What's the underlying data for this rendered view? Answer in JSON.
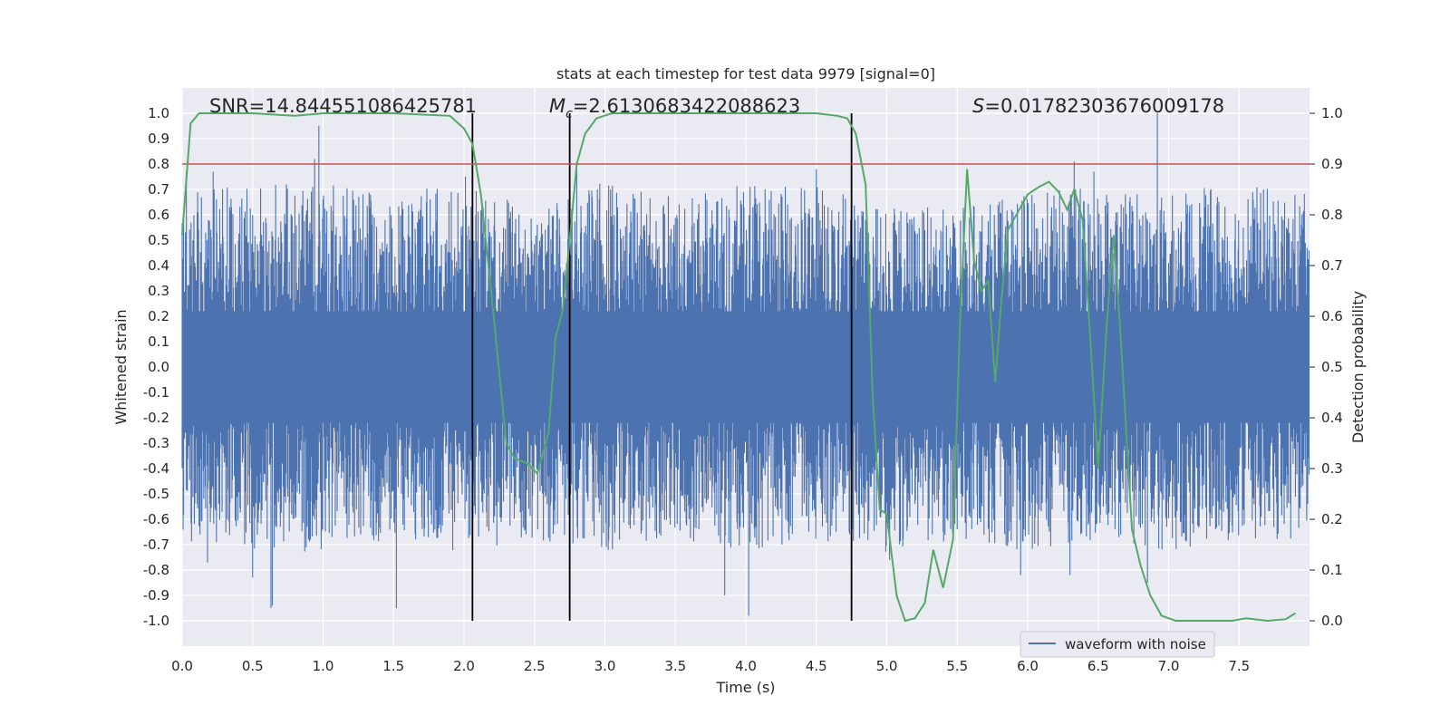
{
  "chart_data": {
    "type": "line",
    "title": "stats at each timestep for test data 9979 [signal=0]",
    "xlabel": "Time (s)",
    "ylabel_left": "Whitened strain",
    "ylabel_right": "Detection probability",
    "xlim": [
      0.0,
      8.0
    ],
    "ylim_left": [
      -1.1,
      1.1
    ],
    "ylim_right": [
      -0.05,
      1.05
    ],
    "xticks": [
      "0.0",
      "0.5",
      "1.0",
      "1.5",
      "2.0",
      "2.5",
      "3.0",
      "3.5",
      "4.0",
      "4.5",
      "5.0",
      "5.5",
      "6.0",
      "6.5",
      "7.0",
      "7.5"
    ],
    "yticks_left": [
      "1.0",
      "0.9",
      "0.8",
      "0.7",
      "0.6",
      "0.5",
      "0.4",
      "0.3",
      "0.2",
      "0.1",
      "0.0",
      "-0.1",
      "-0.2",
      "-0.3",
      "-0.4",
      "-0.5",
      "-0.6",
      "-0.7",
      "-0.8",
      "-0.9",
      "-1.0"
    ],
    "yticks_right": [
      "1.0",
      "0.9",
      "0.8",
      "0.7",
      "0.6",
      "0.5",
      "0.4",
      "0.3",
      "0.2",
      "0.1",
      "0.0"
    ],
    "grid": true,
    "legend_position": "lower-right",
    "threshold": {
      "axis": "right",
      "value": 0.9,
      "color": "#c44e52"
    },
    "vertical_lines": [
      2.06,
      2.75,
      4.75
    ],
    "annotations": {
      "snr": "SNR=14.844551086425781",
      "mc_symbol": "M",
      "mc_sub": "c",
      "mc_value": "=2.6130683422088623",
      "s_symbol": "S",
      "s_value": "=0.01782303676009178"
    },
    "series": [
      {
        "name": "waveform with noise",
        "axis": "left",
        "color": "#4c72b0",
        "description_envelope": {
          "x": [
            0.0,
            0.5,
            1.0,
            1.5,
            2.0,
            2.5,
            3.0,
            3.5,
            4.0,
            4.5,
            5.0,
            5.5,
            6.0,
            6.5,
            7.0,
            7.5,
            8.0
          ],
          "upper_typical": [
            0.55,
            0.6,
            0.6,
            0.55,
            0.6,
            0.5,
            0.6,
            0.55,
            0.6,
            0.6,
            0.5,
            0.5,
            0.55,
            0.6,
            0.55,
            0.6,
            0.55
          ],
          "lower_typical": [
            -0.55,
            -0.6,
            -0.6,
            -0.55,
            -0.6,
            -0.55,
            -0.6,
            -0.55,
            -0.6,
            -0.55,
            -0.6,
            -0.55,
            -0.6,
            -0.55,
            -0.6,
            -0.55,
            -0.55
          ]
        },
        "peaks": [
          {
            "x": 0.03,
            "y": 0.77
          },
          {
            "x": 0.22,
            "y": 0.77
          },
          {
            "x": 0.94,
            "y": 0.82
          },
          {
            "x": 0.97,
            "y": 0.95
          },
          {
            "x": 2.01,
            "y": 0.75
          },
          {
            "x": 2.8,
            "y": 0.81
          },
          {
            "x": 4.5,
            "y": 0.78
          },
          {
            "x": 6.33,
            "y": 0.81
          },
          {
            "x": 6.47,
            "y": 0.77
          },
          {
            "x": 6.92,
            "y": 1.0
          },
          {
            "x": 5.4,
            "y": 0.62
          },
          {
            "x": 0.63,
            "y": -0.95
          },
          {
            "x": 0.64,
            "y": -0.94
          },
          {
            "x": 0.18,
            "y": -0.77
          },
          {
            "x": 0.5,
            "y": -0.83
          },
          {
            "x": 1.52,
            "y": -0.95
          },
          {
            "x": 3.85,
            "y": -0.9
          },
          {
            "x": 4.02,
            "y": -0.98
          },
          {
            "x": 5.02,
            "y": -0.76
          },
          {
            "x": 5.95,
            "y": -0.82
          },
          {
            "x": 6.3,
            "y": -0.82
          },
          {
            "x": 6.85,
            "y": -0.85
          }
        ]
      },
      {
        "name": "",
        "axis": "right",
        "color": "#55a868",
        "x": [
          0.0,
          0.06,
          0.12,
          0.5,
          0.8,
          1.0,
          1.5,
          1.9,
          2.0,
          2.06,
          2.12,
          2.2,
          2.3,
          2.36,
          2.45,
          2.52,
          2.6,
          2.65,
          2.7,
          2.75,
          2.8,
          2.86,
          2.94,
          3.05,
          4.5,
          4.65,
          4.72,
          4.78,
          4.85,
          4.9,
          4.95,
          5.0,
          5.07,
          5.13,
          5.2,
          5.27,
          5.33,
          5.4,
          5.47,
          5.52,
          5.57,
          5.62,
          5.67,
          5.72,
          5.77,
          5.81,
          5.86,
          5.92,
          6.0,
          6.08,
          6.15,
          6.22,
          6.28,
          6.33,
          6.39,
          6.45,
          6.5,
          6.56,
          6.61,
          6.66,
          6.74,
          6.8,
          6.87,
          6.95,
          7.05,
          7.2,
          7.35,
          7.45,
          7.55,
          7.7,
          7.83,
          7.9
        ],
        "y": [
          0.76,
          0.98,
          1.0,
          1.0,
          0.995,
          1.0,
          1.0,
          0.995,
          0.97,
          0.94,
          0.84,
          0.63,
          0.35,
          0.32,
          0.31,
          0.29,
          0.37,
          0.56,
          0.61,
          0.75,
          0.9,
          0.96,
          0.99,
          1.0,
          1.0,
          0.995,
          0.99,
          0.96,
          0.86,
          0.44,
          0.22,
          0.21,
          0.05,
          0.0,
          0.005,
          0.035,
          0.14,
          0.065,
          0.16,
          0.59,
          0.89,
          0.71,
          0.65,
          0.67,
          0.47,
          0.62,
          0.77,
          0.8,
          0.84,
          0.855,
          0.865,
          0.845,
          0.81,
          0.85,
          0.79,
          0.53,
          0.3,
          0.58,
          0.76,
          0.56,
          0.18,
          0.11,
          0.05,
          0.01,
          0.0,
          0.0,
          0.0,
          0.0,
          0.005,
          0.0,
          0.003,
          0.015
        ]
      }
    ]
  }
}
